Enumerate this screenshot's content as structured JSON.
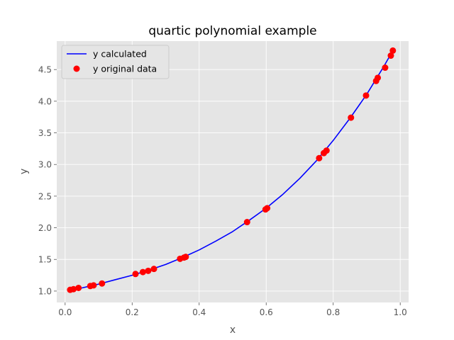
{
  "chart_data": {
    "type": "scatter",
    "title": "quartic polynomial example",
    "xlabel": "x",
    "ylabel": "y",
    "xlim": [
      -0.025,
      1.025
    ],
    "ylim": [
      0.82,
      4.95
    ],
    "xticks": [
      0.0,
      0.2,
      0.4,
      0.6,
      0.8,
      1.0
    ],
    "xtick_labels": [
      "0.0",
      "0.2",
      "0.4",
      "0.6",
      "0.8",
      "1.0"
    ],
    "yticks": [
      1.0,
      1.5,
      2.0,
      2.5,
      3.0,
      3.5,
      4.0,
      4.5
    ],
    "ytick_labels": [
      "1.0",
      "1.5",
      "2.0",
      "2.5",
      "3.0",
      "3.5",
      "4.0",
      "4.5"
    ],
    "grid": true,
    "legend_position": "top-left",
    "background": "#e5e5e5",
    "series": [
      {
        "name": "y calculated",
        "kind": "line",
        "color": "#0000ff",
        "x": [
          0.015,
          0.05,
          0.1,
          0.15,
          0.2,
          0.25,
          0.3,
          0.35,
          0.4,
          0.45,
          0.5,
          0.55,
          0.6,
          0.65,
          0.7,
          0.75,
          0.8,
          0.85,
          0.9,
          0.95,
          0.978
        ],
        "y": [
          1.02,
          1.05,
          1.11,
          1.18,
          1.25,
          1.33,
          1.42,
          1.53,
          1.65,
          1.79,
          1.94,
          2.12,
          2.31,
          2.53,
          2.78,
          3.06,
          3.38,
          3.73,
          4.11,
          4.54,
          4.8
        ]
      },
      {
        "name": "y original data",
        "kind": "scatter",
        "color": "#ff0000",
        "x": [
          0.015,
          0.025,
          0.04,
          0.075,
          0.085,
          0.11,
          0.21,
          0.232,
          0.248,
          0.265,
          0.343,
          0.355,
          0.36,
          0.543,
          0.598,
          0.603,
          0.758,
          0.772,
          0.78,
          0.853,
          0.898,
          0.928,
          0.933,
          0.955,
          0.972,
          0.978
        ],
        "y": [
          1.02,
          1.03,
          1.05,
          1.08,
          1.09,
          1.12,
          1.27,
          1.3,
          1.32,
          1.35,
          1.51,
          1.53,
          1.54,
          2.09,
          2.29,
          2.31,
          3.1,
          3.18,
          3.22,
          3.74,
          4.09,
          4.32,
          4.37,
          4.53,
          4.72,
          4.8
        ]
      }
    ]
  }
}
